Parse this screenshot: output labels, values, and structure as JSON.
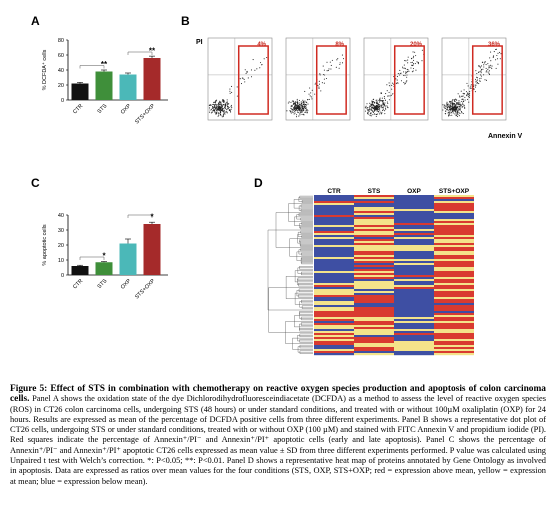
{
  "panels": {
    "a": {
      "letter": "A",
      "ylabel": "% DCFDA⁺ cells",
      "yticks": [
        "0",
        "20",
        "40",
        "60",
        "80"
      ],
      "categories": [
        "CTR",
        "STS",
        "OXP",
        "STS+OXP"
      ],
      "colors": [
        "#111111",
        "#3f8f3a",
        "#4bb8b8",
        "#a52a2a"
      ],
      "significance": [
        "**",
        "**"
      ]
    },
    "b": {
      "letter": "B",
      "y_axis": "PI",
      "x_axis": "Annexin V",
      "percentages": [
        "4%",
        "8%",
        "20%",
        "36%"
      ]
    },
    "c": {
      "letter": "C",
      "ylabel": "% apoptotic cells",
      "yticks": [
        "0",
        "10",
        "20",
        "30",
        "40"
      ],
      "categories": [
        "CTR",
        "STS",
        "OXP",
        "STS+OXP"
      ],
      "colors": [
        "#111111",
        "#3f8f3a",
        "#4bb8b8",
        "#a52a2a"
      ],
      "significance": [
        "*",
        "*"
      ]
    },
    "d": {
      "letter": "D",
      "columns": [
        "CTR",
        "STS",
        "OXP",
        "STS+OXP"
      ],
      "scale_colors": {
        "high": "#d93a30",
        "mid": "#f4e38a",
        "low": "#3e4fa3"
      }
    }
  },
  "chart_data": [
    {
      "type": "bar",
      "categories": [
        "CTR",
        "STS",
        "OXP",
        "STS+OXP"
      ],
      "values": [
        22,
        38,
        34,
        56
      ],
      "errors": [
        1.5,
        2,
        2,
        2.5
      ],
      "title": "",
      "xlabel": "",
      "ylabel": "% DCFDA⁺ cells",
      "ylim": [
        0,
        80
      ],
      "grid": false
    },
    {
      "type": "bar",
      "categories": [
        "CTR",
        "STS",
        "OXP",
        "STS+OXP"
      ],
      "values": [
        6,
        8.5,
        21,
        34
      ],
      "errors": [
        0.5,
        0.5,
        3,
        1.2
      ],
      "title": "",
      "xlabel": "",
      "ylabel": "% apoptotic cells",
      "ylim": [
        0,
        40
      ],
      "grid": false
    }
  ],
  "caption": {
    "title": "Figure 5: Effect of STS in combination with chemotherapy on reactive oxygen species production and apoptosis of colon carcinoma cells.",
    "body": "Panel A shows the oxidation state of the dye Dichlorodihydrofluoresceindiacetate (DCFDA) as a method to assess the level of reactive oxygen species (ROS) in CT26 colon carcinoma cells, undergoing STS (48 hours) or under standard conditions, and treated with or without 100µM oxaliplatin (OXP) for 24 hours. Results are expressed as mean of the percentage of DCFDA positive cells from three different experiments. Panel B shows a representative dot plot of CT26 cells, undergoing STS or under standard conditions, treated with or without OXP (100 µM) and stained with FITC Annexin V and propidium iodide (PI). Red squares indicate the percentage of Annexin⁺/PI⁻ and Annexin⁺/PI⁺ apoptotic cells (early and late apoptosis). Panel C shows the percentage of Annexin⁺/PI⁻ and Annexin⁺/PI⁺ apoptotic CT26 cells expressed as mean value ± SD from three different experiments performed. P value was calculated using Unpaired t test with Welch’s correction. *: P<0.05; **: P<0.01. Panel D shows a representative heat map of proteins annotated by Gene Ontology as involved in apoptosis. Data are expressed as ratios over mean values for the four conditions (STS, OXP, STS+OXP; red = expression above mean, yellow = expression at mean; blue = expression below mean)."
  }
}
